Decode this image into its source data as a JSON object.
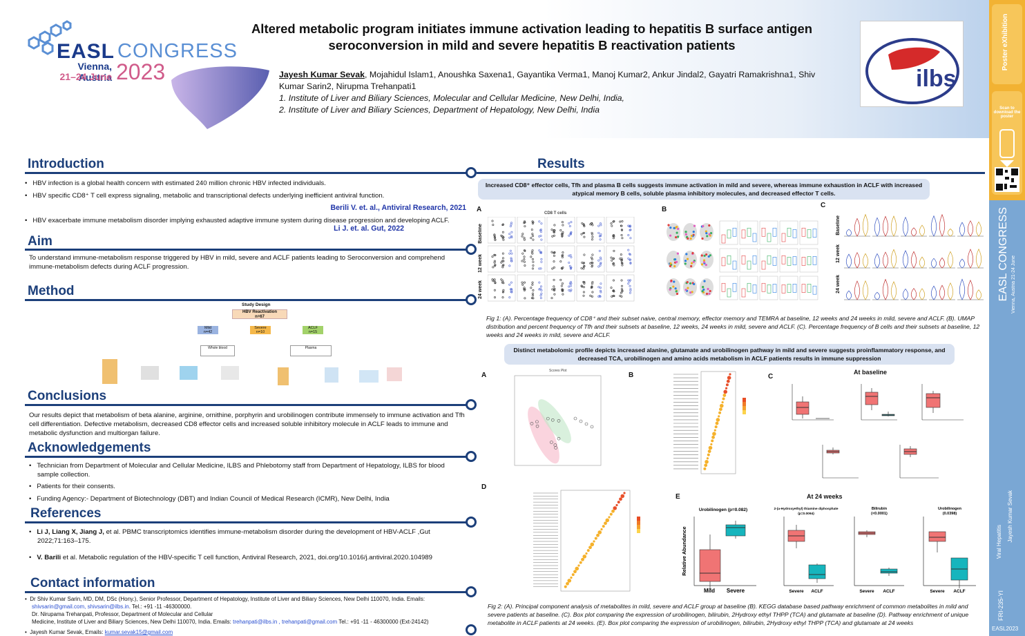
{
  "header": {
    "title": "Altered metabolic program initiates immune activation leading to hepatitis B surface antigen seroconversion in mild and severe hepatitis B reactivation patients",
    "author_lead": "Jayesh Kumar Sevak",
    "authors_rest": ", Mojahidul Islam1, Anoushka Saxena1, Gayantika Verma1, Manoj Kumar2, Ankur Jindal2, Gayatri Ramakrishna1, Shiv Kumar Sarin2, Nirupma Trehanpati1",
    "aff1": "1. Institute of Liver and Biliary Sciences, Molecular and Cellular Medicine, New Delhi, India,",
    "aff2": "2. Institute of Liver and Biliary Sciences, Department of Hepatology, New Delhi, India"
  },
  "logo": {
    "easl": "EASL",
    "congress": "CONGRESS",
    "place": "Vienna, Austria",
    "dates": "21–24 June",
    "year": "2023",
    "ilbs": "ilbs"
  },
  "intro": {
    "heading": "Introduction",
    "b1": "HBV infection is a global health concern with estimated 240 million chronic HBV infected individuals.",
    "b2": "HBV specific CD8⁺ T cell express signaling, metabolic and transcriptional defects underlying inefficient antiviral function.",
    "ref1": "Berili V. et. al., Antiviral Research, 2021",
    "b3": "HBV exacerbate immune metabolism disorder implying exhausted adaptive immune system during disease progression and developing ACLF.",
    "ref2": "Li J. et. al. Gut, 2022"
  },
  "aim": {
    "heading": "Aim",
    "text": "To understand immune-metabolism response triggered by HBV in mild, severe and ACLF patients leading to Seroconversion and comprehend immune-metabolism defects during ACLF progression."
  },
  "method": {
    "heading": "Method",
    "study": "Study Design",
    "reactivation": "HBV Reactivation",
    "n": "n=67",
    "mild": "Mild",
    "mild_n": "n=42",
    "severe": "Severe",
    "severe_n": "n=10",
    "aclf": "ACLF",
    "aclf_n": "n=15",
    "wb": "Whole blood",
    "plasma": "Plasma"
  },
  "conclusions": {
    "heading": "Conclusions",
    "text": "Our results depict that metabolism of beta alanine, arginine, ornithine, porphyrin and urobilinogen contribute immensely to immune activation and Tfh cell differentiation. Defective metabolism, decreased CD8 effector cells and increased soluble inhibitory molecule in ACLF leads to immune and metabolic dysfunction and multiorgan failure."
  },
  "ack": {
    "heading": "Acknowledgements",
    "b1": "Technician from Department of Molecular and Cellular Medicine, ILBS and Phlebotomy staff from Department of Hepatology, ILBS for blood sample collection.",
    "b2": "Patients for their consents.",
    "b3": "Funding Agency:- Department of Biotechnology (DBT) and Indian Council of Medical Research (ICMR), New Delhi, India"
  },
  "refs": {
    "heading": "References",
    "r1a": "Li J, Liang X, Jiang J,",
    "r1b": " et al. PBMC transcriptomics identifies immune-metabolism disorder during the development of HBV-ACLF ,Gut 2022;71:163–175.",
    "r2a": "V. Barili",
    "r2b": " et al. Metabolic regulation of the HBV-specific T cell function, Antiviral Research, 2021, doi.org/10.1016/j.antiviral.2020.104989"
  },
  "contact": {
    "heading": "Contact information",
    "l1": "Dr Shiv Kumar Sarin, MD, DM, DSc (Hony.), Senior Professor, Department of Hepatology, Institute of Liver and Biliary Sciences, New Delhi 110070, India. Emails:",
    "l1email": "shivsarin@gmail.com, shivsarin@ilbs.in",
    "l1tel": ". Tel.: +91 -11 -46300000.",
    "l2": "Dr. Nirupama Trehanpati, Professor, Department of Molecular and Cellular",
    "l3a": "Medicine, Institute of Liver and Biliary Sciences, New Delhi 110070, India. Emails:",
    "l3email": "trehanpati@ilbs.in , trehanpati@gmail.com",
    "l3tel": " Tel.: +91 -11 - 46300000 (Ext-24142)",
    "l4a": "Jayesh Kumar Sevak, Emails: ",
    "l4email": "kumar.sevak15@gmail.com"
  },
  "results": {
    "heading": "Results",
    "banner1": "Increased CD8⁺ effector cells, Tfh and plasma B cells suggests immune activation in mild and severe, whereas immune exhaustion in ACLF with increased atypical memory B cells, soluble plasma inhibitory molecules, and decreased effector T cells.",
    "fig1cap": "Fig 1: (A). Percentage frequency of CD8⁺ and their subset naive, central memory, effector memory and TEMRA at baseline, 12 weeks and 24 weeks in mild, severe and ACLF. (B). UMAP distribution and percent frequency of Tfh and their subsets at baseline, 12 weeks, 24 weeks in mild, severe and ACLF. (C). Percentage frequency of B cells and their subsets at baseline, 12 weeks and 24 weeks in mild, severe and ACLF.",
    "banner2": "Distinct metabolomic profile depicts increased alanine, glutamate and urobilinogen pathway in mild and severe suggests proinflammatory response, and decreased TCA, urobilinogen and amino acids metabolism in ACLF patients results in immune suppression",
    "at_baseline": "At baseline",
    "at24": "At 24 weeks",
    "fig2cap": "Fig 2: (A). Principal component analysis of metabolites in mild, severe and ACLF group at baseline (B). KEGG database based pathway enrichment of common metabolites in mild and severe patients at baseline. (C). Box plot comparing the expression of urobilinogen, bilirubin, 2Hydroxy ethyl THPP (TCA) and glutamate at baseline (D). Pathway enrichment of unique metabolite in ACLF patients at 24 weeks. (E). Box plot comparing the expression of urobilinogen, bilirubin, 2Hydroxy ethyl THPP (TCA) and glutamate at 24 weeks",
    "cd8": "CD8 T cells",
    "ylab": "Relative Abundance",
    "uro": "Urobilinogen",
    "uro_p": "(p=0.082)",
    "e2": "2-(a-Hydroxyethyl) thiamine diphosphate",
    "e2p": "(p=0.0094)",
    "e3": "Bilirubin",
    "e3p": "(<0.0001)",
    "e4": "Urobilinogen",
    "e4p": "(0.0398)",
    "mild": "Mild",
    "severe": "Severe",
    "aclf": "ACLF",
    "baseline": "Baseline",
    "w12": "12 week",
    "w24": "24 week",
    "scores": "Scores Plot"
  },
  "sidebar": {
    "poster": "Poster eXhibition",
    "scan": "Scan to download the poster",
    "congress": "EASL CONGRESS",
    "vienna": "Vienna, Austria 21-24 June",
    "topic": "Viral Hepatitis",
    "author": "Jayesh Kumar Sevak",
    "code": "FRI-235-YI",
    "year": "EASL2023"
  },
  "colors": {
    "navy": "#1c3f7a",
    "sidebar": "#f2b233",
    "red": "#f07474",
    "teal": "#16b5bd"
  }
}
